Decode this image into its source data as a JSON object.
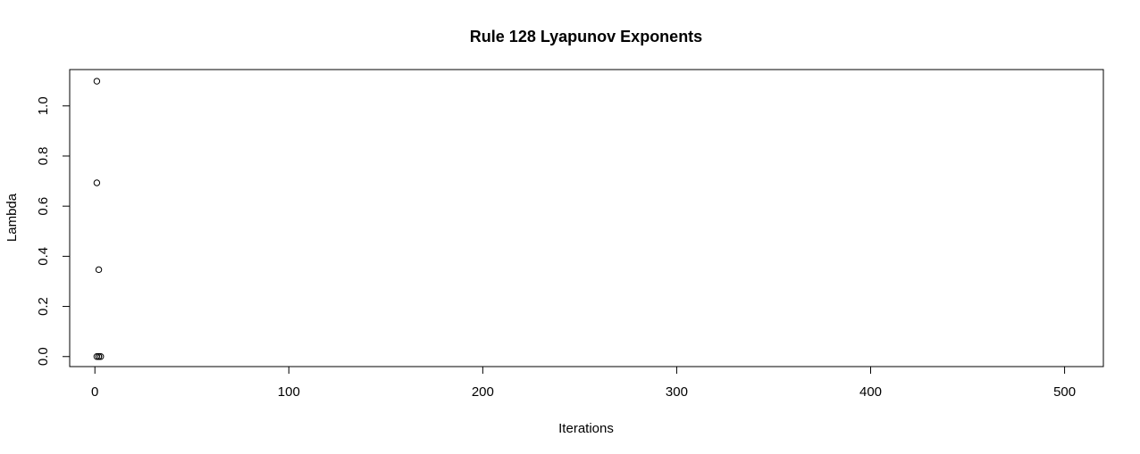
{
  "chart_data": {
    "type": "scatter",
    "title": "Rule 128 Lyapunov Exponents",
    "xlabel": "Iterations",
    "ylabel": "Lambda",
    "xlim": [
      -13,
      520
    ],
    "ylim": [
      -0.04,
      1.145
    ],
    "xticks": [
      0,
      100,
      200,
      300,
      400,
      500
    ],
    "yticks": [
      0.0,
      0.2,
      0.4,
      0.6,
      0.8,
      1.0
    ],
    "ytick_labels": [
      "0.0",
      "0.2",
      "0.4",
      "0.6",
      "0.8",
      "1.0"
    ],
    "grid": false,
    "marker": "open-circle",
    "series": [
      {
        "x": [
          1,
          1,
          2,
          1,
          2,
          3,
          2
        ],
        "y": [
          1.0986,
          0.6931,
          0.3466,
          0.0,
          0.0,
          0.0,
          0.0
        ]
      }
    ]
  }
}
